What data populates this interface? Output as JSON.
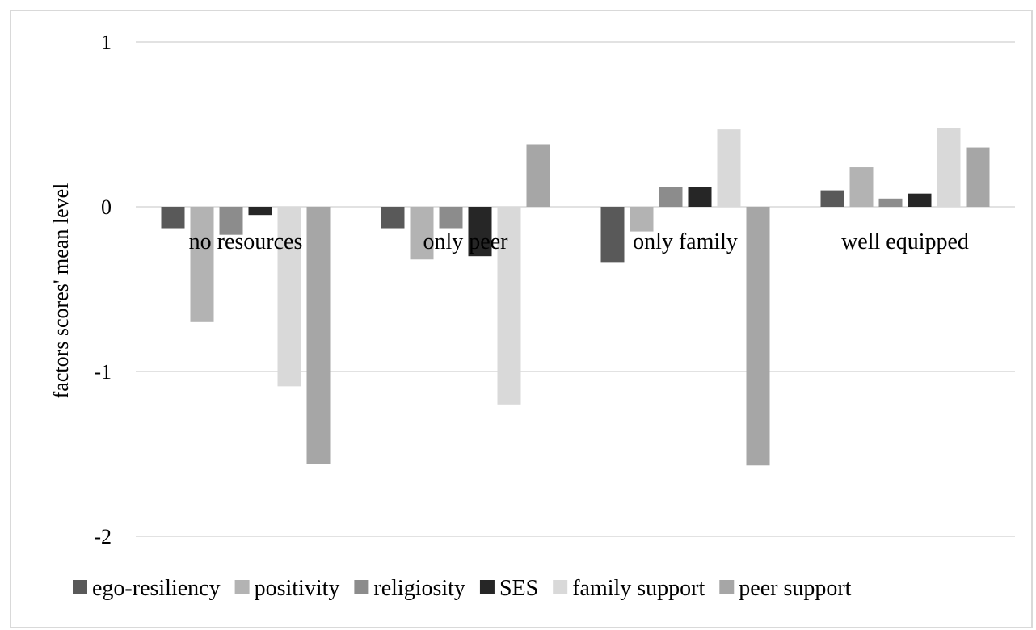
{
  "chart_data": {
    "type": "bar",
    "title": "",
    "xlabel": "",
    "ylabel": "factors scores' mean level",
    "ylim": [
      -2,
      1
    ],
    "yticks": [
      1,
      0,
      -1,
      -2
    ],
    "grid": true,
    "legend_position": "bottom",
    "categories": [
      "no resources",
      "only peer",
      "only family",
      "well equipped"
    ],
    "series": [
      {
        "name": "ego-resiliency",
        "color": "#595959",
        "values": [
          -0.13,
          -0.13,
          -0.34,
          0.1
        ]
      },
      {
        "name": "positivity",
        "color": "#b3b3b3",
        "values": [
          -0.7,
          -0.32,
          -0.15,
          0.24
        ]
      },
      {
        "name": "religiosity",
        "color": "#8c8c8c",
        "values": [
          -0.17,
          -0.13,
          0.12,
          0.05
        ]
      },
      {
        "name": "SES",
        "color": "#262626",
        "values": [
          -0.05,
          -0.3,
          0.12,
          0.08
        ]
      },
      {
        "name": "family support",
        "color": "#d9d9d9",
        "values": [
          -1.09,
          -1.2,
          0.47,
          0.48
        ]
      },
      {
        "name": "peer support",
        "color": "#a6a6a6",
        "values": [
          -1.56,
          0.38,
          -1.57,
          0.36
        ]
      }
    ]
  }
}
